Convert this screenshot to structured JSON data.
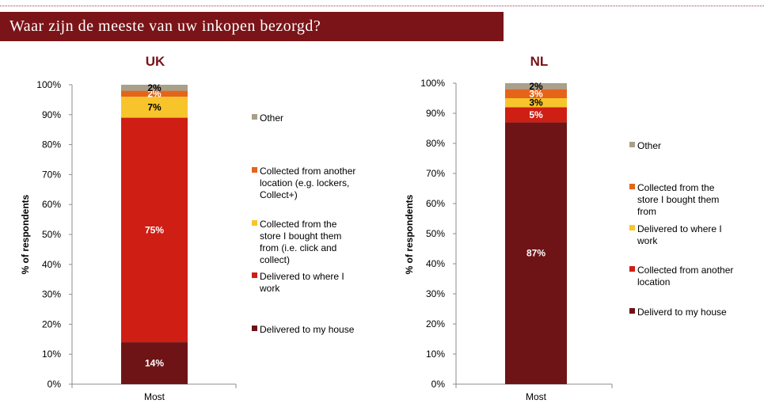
{
  "header": {
    "title": "Waar zijn de meeste van uw inkopen bezorgd?"
  },
  "chart_data": [
    {
      "type": "bar",
      "stacked": true,
      "title": "UK",
      "xlabel": "",
      "ylabel": "% of respondents",
      "ylim": [
        0,
        100
      ],
      "yticks": [
        "0%",
        "10%",
        "20%",
        "30%",
        "40%",
        "50%",
        "60%",
        "70%",
        "80%",
        "90%",
        "100%"
      ],
      "categories": [
        "Most"
      ],
      "grid": false,
      "legend_position": "right",
      "series": [
        {
          "name": "Delivered to my house",
          "values": [
            14
          ],
          "label": "14%",
          "color": "#6e1416",
          "label_color": "#ffffff"
        },
        {
          "name": "Delivered to where I work",
          "values": [
            75
          ],
          "label": "75%",
          "color": "#cf1e14",
          "label_color": "#ffffff"
        },
        {
          "name": "Collected from the store I bought them from (i.e. click and collect)",
          "values": [
            7
          ],
          "label": "7%",
          "color": "#f7c52b",
          "label_color": "#000000"
        },
        {
          "name": "Collected from another location (e.g. lockers, Collect+)",
          "values": [
            2
          ],
          "label": "2%",
          "color": "#e4641a",
          "label_color": "#ffffff"
        },
        {
          "name": "Other",
          "values": [
            2
          ],
          "label": "2%",
          "color": "#a8a08a",
          "label_color": "#000000"
        }
      ],
      "legend_order": [
        {
          "lines": [
            "Other"
          ],
          "color": "#a8a08a"
        },
        {
          "lines": [
            "Collected from another",
            "location (e.g. lockers,",
            "Collect+)"
          ],
          "color": "#e4641a"
        },
        {
          "lines": [
            "Collected from the",
            "store I bought them",
            "from (i.e. click and",
            "collect)"
          ],
          "color": "#f7c52b"
        },
        {
          "lines": [
            "Delivered to where I",
            "work"
          ],
          "color": "#cf1e14"
        },
        {
          "lines": [
            "Delivered to my house"
          ],
          "color": "#6e1416"
        }
      ]
    },
    {
      "type": "bar",
      "stacked": true,
      "title": "NL",
      "xlabel": "",
      "ylabel": "% of respondents",
      "ylim": [
        0,
        100
      ],
      "yticks": [
        "0%",
        "10%",
        "20%",
        "30%",
        "40%",
        "50%",
        "60%",
        "70%",
        "80%",
        "90%",
        "100%"
      ],
      "categories": [
        "Most"
      ],
      "grid": false,
      "legend_position": "right",
      "series": [
        {
          "name": "Deliverd to my house",
          "values": [
            87
          ],
          "label": "87%",
          "color": "#6e1416",
          "label_color": "#ffffff"
        },
        {
          "name": "Collected from another location",
          "values": [
            5
          ],
          "label": "5%",
          "color": "#cf1e14",
          "label_color": "#ffffff"
        },
        {
          "name": "Delivered to where I work",
          "values": [
            3
          ],
          "label": "3%",
          "color": "#f7c52b",
          "label_color": "#000000"
        },
        {
          "name": "Collected from the store I bought them from",
          "values": [
            3
          ],
          "label": "3%",
          "color": "#e4641a",
          "label_color": "#ffffff"
        },
        {
          "name": "Other",
          "values": [
            2
          ],
          "label": "2%",
          "color": "#a8a08a",
          "label_color": "#000000"
        }
      ],
      "legend_order": [
        {
          "lines": [
            "Other"
          ],
          "color": "#a8a08a"
        },
        {
          "lines": [
            "Collected from the",
            "store I bought them",
            "from"
          ],
          "color": "#e4641a"
        },
        {
          "lines": [
            "Delivered to where I",
            "work"
          ],
          "color": "#f7c52b"
        },
        {
          "lines": [
            "Collected from another",
            "location"
          ],
          "color": "#cf1e14"
        },
        {
          "lines": [
            "Deliverd to my house"
          ],
          "color": "#6e1416"
        }
      ]
    }
  ]
}
